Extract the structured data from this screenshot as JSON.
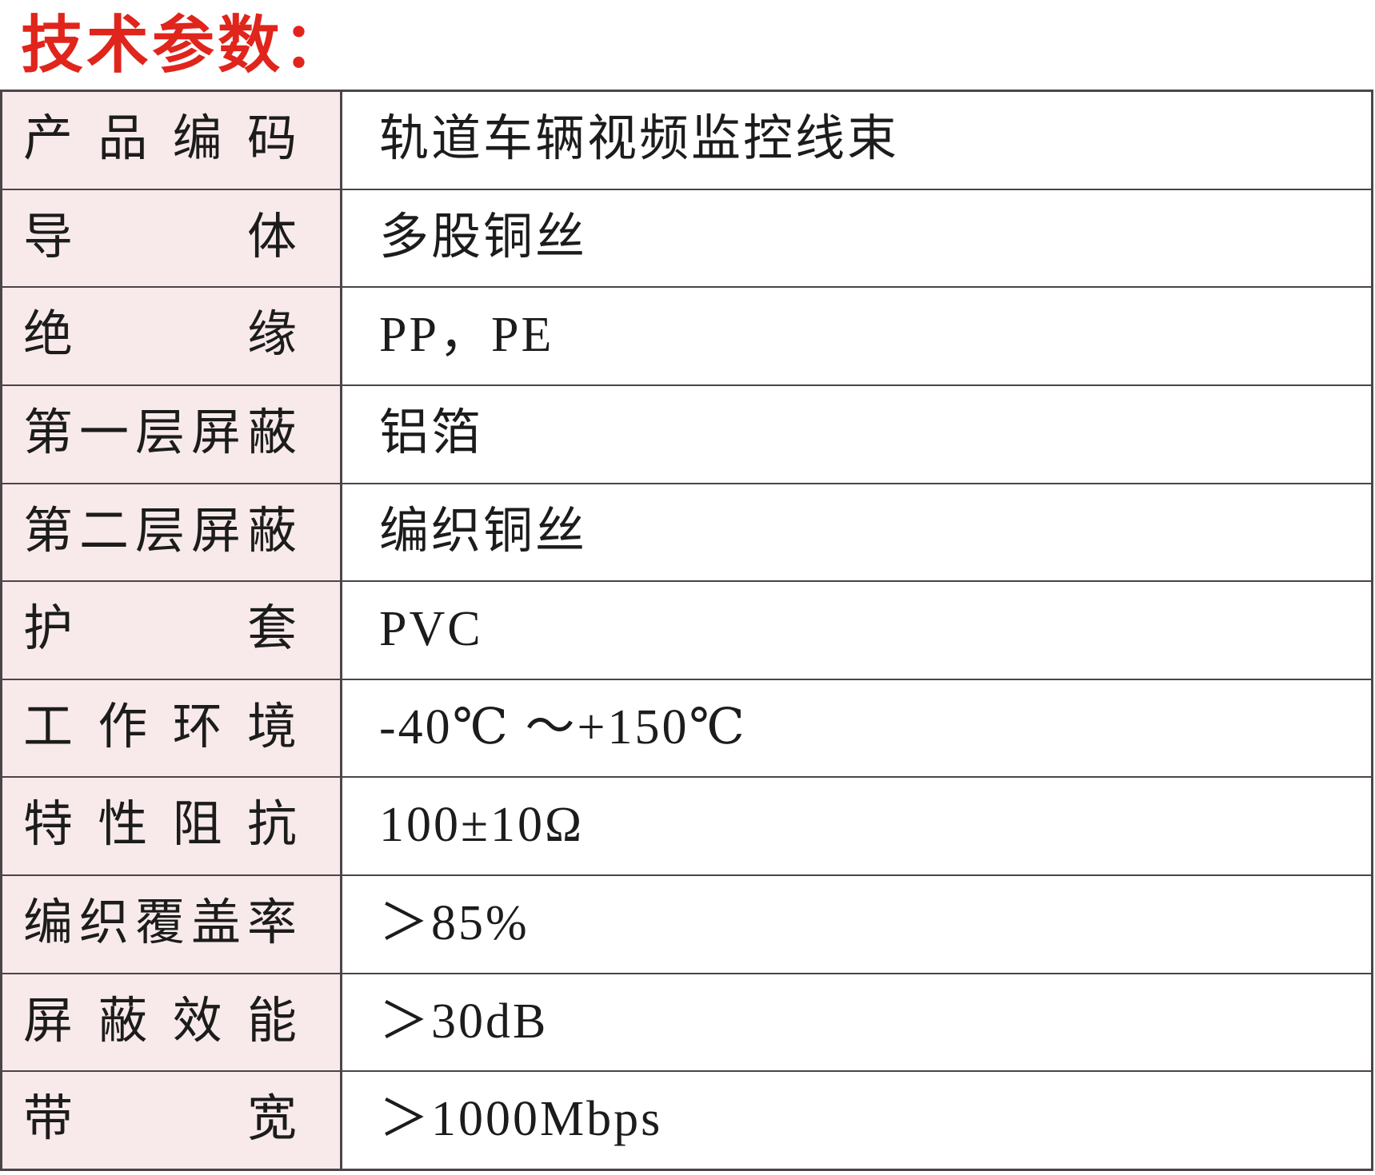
{
  "page": {
    "title": "技术参数：",
    "colors": {
      "title_red": "#e0251c",
      "label_cell_bg": "#f8eaea",
      "border": "#4b4549",
      "text": "#1c1c1c",
      "value_cell_bg": "#ffffff"
    }
  },
  "table": {
    "rows": [
      {
        "label": "产品编码",
        "value": "轨道车辆视频监控线束"
      },
      {
        "label": "导体",
        "value": "多股铜丝"
      },
      {
        "label": "绝缘",
        "value": "PP，PE"
      },
      {
        "label": "第一层屏蔽",
        "value": "铝箔"
      },
      {
        "label": "第二层屏蔽",
        "value": "编织铜丝"
      },
      {
        "label": "护套",
        "value": "PVC"
      },
      {
        "label": "工作环境",
        "value": "-40℃ ～+150℃"
      },
      {
        "label": "特性阻抗",
        "value": "100±10Ω"
      },
      {
        "label": "编织覆盖率",
        "value": "＞85%"
      },
      {
        "label": "屏蔽效能",
        "value": "＞30dB"
      },
      {
        "label": "带宽",
        "value": "＞1000Mbps"
      }
    ]
  }
}
